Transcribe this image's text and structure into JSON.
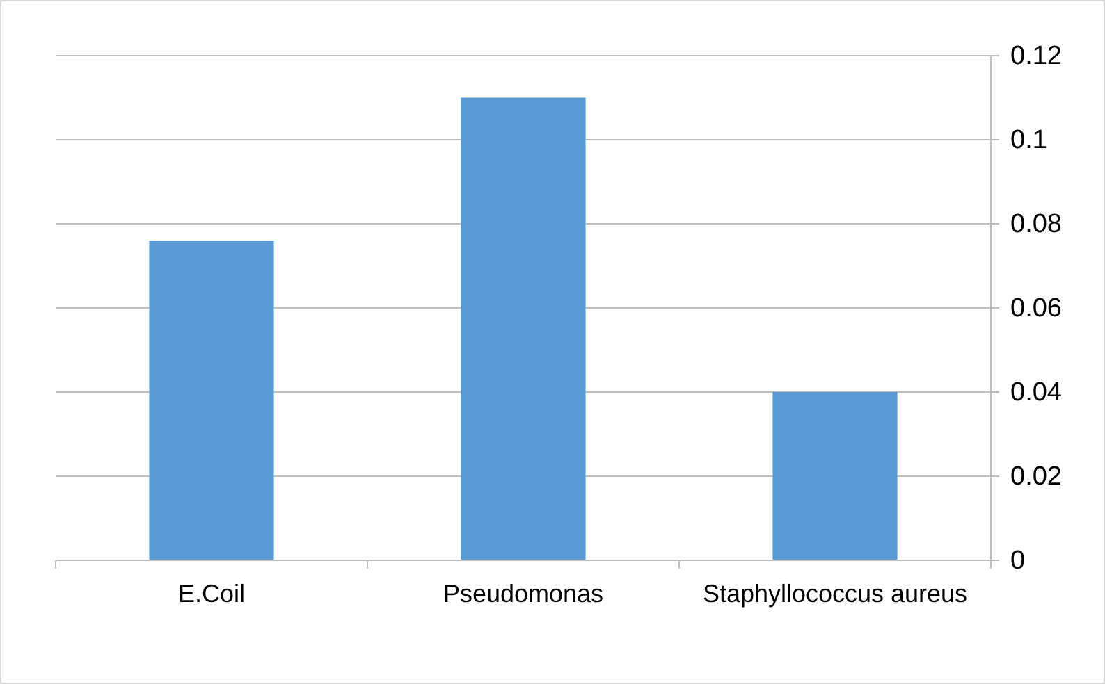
{
  "chart_data": {
    "type": "bar",
    "categories": [
      "E.Coil",
      "Pseudomonas",
      "Staphyllococcus aureus"
    ],
    "values": [
      0.076,
      0.11,
      0.04
    ],
    "color": "#5b9bd5",
    "ylim": [
      0,
      0.12
    ],
    "yticks": [
      0,
      0.02,
      0.04,
      0.06,
      0.08,
      0.1,
      0.12
    ],
    "grid": "y"
  }
}
